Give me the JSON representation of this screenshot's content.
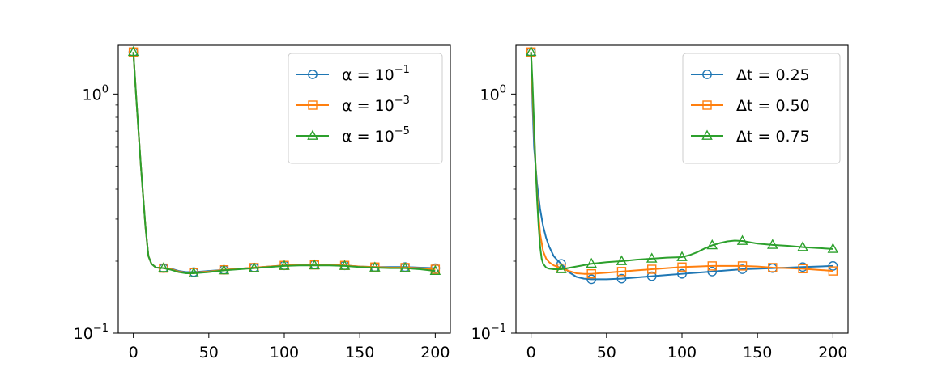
{
  "figure": {
    "background": "#ffffff"
  },
  "chart_data": [
    {
      "type": "line",
      "yscale": "log",
      "xlim": [
        -10,
        210
      ],
      "ylim": [
        0.1,
        1.6
      ],
      "xticks": [
        0,
        50,
        100,
        150,
        200
      ],
      "xtick_labels": [
        "0",
        "50",
        "100",
        "150",
        "200"
      ],
      "yticks": [
        0.1,
        1.0
      ],
      "ytick_labels": [
        {
          "base": "10",
          "exp": "−1"
        },
        {
          "base": "10",
          "exp": "0"
        }
      ],
      "legend_position": "top-right",
      "series": [
        {
          "name": "α = 10⁻¹",
          "legend": {
            "symbol": "α = 10",
            "exp": "−1"
          },
          "color": "#1f77b4",
          "marker": "circle",
          "x": [
            0,
            2,
            5,
            8,
            10,
            12,
            15,
            20,
            25,
            30,
            35,
            40,
            50,
            60,
            70,
            80,
            90,
            100,
            110,
            120,
            130,
            140,
            150,
            160,
            170,
            180,
            190,
            200
          ],
          "y": [
            1.5,
            0.95,
            0.5,
            0.28,
            0.21,
            0.195,
            0.188,
            0.187,
            0.186,
            0.182,
            0.18,
            0.18,
            0.182,
            0.184,
            0.186,
            0.188,
            0.19,
            0.192,
            0.193,
            0.194,
            0.193,
            0.192,
            0.19,
            0.189,
            0.189,
            0.189,
            0.188,
            0.187
          ],
          "marker_x": [
            0,
            20,
            40,
            60,
            80,
            100,
            120,
            140,
            160,
            180,
            200
          ]
        },
        {
          "name": "α = 10⁻³",
          "legend": {
            "symbol": "α = 10",
            "exp": "−3"
          },
          "color": "#ff7f0e",
          "marker": "square",
          "x": [
            0,
            2,
            5,
            8,
            10,
            12,
            15,
            20,
            25,
            30,
            35,
            40,
            50,
            60,
            70,
            80,
            90,
            100,
            110,
            120,
            130,
            140,
            150,
            160,
            170,
            180,
            190,
            200
          ],
          "y": [
            1.5,
            0.95,
            0.5,
            0.28,
            0.21,
            0.195,
            0.188,
            0.187,
            0.185,
            0.181,
            0.179,
            0.179,
            0.181,
            0.184,
            0.186,
            0.188,
            0.19,
            0.192,
            0.193,
            0.193,
            0.193,
            0.192,
            0.19,
            0.189,
            0.188,
            0.188,
            0.187,
            0.185
          ],
          "marker_x": [
            0,
            20,
            40,
            60,
            80,
            100,
            120,
            140,
            160,
            180,
            200
          ]
        },
        {
          "name": "α = 10⁻⁵",
          "legend": {
            "symbol": "α = 10",
            "exp": "−5"
          },
          "color": "#2ca02c",
          "marker": "triangle",
          "x": [
            0,
            2,
            5,
            8,
            10,
            12,
            15,
            20,
            25,
            30,
            35,
            40,
            50,
            60,
            70,
            80,
            90,
            100,
            110,
            120,
            130,
            140,
            150,
            160,
            170,
            180,
            190,
            200
          ],
          "y": [
            1.5,
            0.95,
            0.5,
            0.28,
            0.21,
            0.195,
            0.188,
            0.187,
            0.184,
            0.18,
            0.178,
            0.178,
            0.18,
            0.183,
            0.185,
            0.187,
            0.189,
            0.191,
            0.192,
            0.192,
            0.192,
            0.191,
            0.189,
            0.188,
            0.187,
            0.187,
            0.185,
            0.182
          ],
          "marker_x": [
            0,
            20,
            40,
            60,
            80,
            100,
            120,
            140,
            160,
            180,
            200
          ]
        }
      ]
    },
    {
      "type": "line",
      "yscale": "log",
      "xlim": [
        -10,
        210
      ],
      "ylim": [
        0.1,
        1.6
      ],
      "xticks": [
        0,
        50,
        100,
        150,
        200
      ],
      "xtick_labels": [
        "0",
        "50",
        "100",
        "150",
        "200"
      ],
      "yticks": [
        0.1,
        1.0
      ],
      "ytick_labels": [
        {
          "base": "10",
          "exp": "−1"
        },
        {
          "base": "10",
          "exp": "0"
        }
      ],
      "legend_position": "top-right",
      "series": [
        {
          "name": "Δt = 0.25",
          "legend": {
            "symbol": "Δt = 0.25",
            "exp": ""
          },
          "color": "#1f77b4",
          "marker": "circle",
          "x": [
            0,
            1,
            2,
            4,
            6,
            8,
            10,
            12,
            15,
            18,
            20,
            25,
            30,
            35,
            40,
            50,
            60,
            70,
            80,
            90,
            100,
            110,
            120,
            130,
            140,
            150,
            160,
            170,
            180,
            190,
            200
          ],
          "y": [
            1.5,
            0.9,
            0.6,
            0.42,
            0.33,
            0.28,
            0.25,
            0.23,
            0.21,
            0.2,
            0.195,
            0.18,
            0.172,
            0.169,
            0.168,
            0.168,
            0.169,
            0.171,
            0.173,
            0.175,
            0.177,
            0.179,
            0.181,
            0.183,
            0.185,
            0.186,
            0.187,
            0.188,
            0.189,
            0.19,
            0.191
          ],
          "marker_x": [
            0,
            20,
            40,
            60,
            80,
            100,
            120,
            140,
            160,
            180,
            200
          ]
        },
        {
          "name": "Δt = 0.50",
          "legend": {
            "symbol": "Δt = 0.50",
            "exp": ""
          },
          "color": "#ff7f0e",
          "marker": "square",
          "x": [
            0,
            1,
            2,
            3,
            4,
            5,
            6,
            8,
            10,
            12,
            15,
            20,
            25,
            30,
            35,
            40,
            50,
            60,
            70,
            80,
            90,
            100,
            110,
            120,
            130,
            140,
            150,
            160,
            170,
            180,
            190,
            200
          ],
          "y": [
            1.5,
            1.0,
            0.7,
            0.5,
            0.38,
            0.31,
            0.26,
            0.22,
            0.205,
            0.198,
            0.192,
            0.187,
            0.182,
            0.178,
            0.177,
            0.177,
            0.179,
            0.181,
            0.183,
            0.185,
            0.187,
            0.189,
            0.19,
            0.191,
            0.191,
            0.191,
            0.19,
            0.188,
            0.187,
            0.186,
            0.184,
            0.182
          ],
          "marker_x": [
            0,
            20,
            40,
            60,
            80,
            100,
            120,
            140,
            160,
            180,
            200
          ]
        },
        {
          "name": "Δt = 0.75",
          "legend": {
            "symbol": "Δt = 0.75",
            "exp": ""
          },
          "color": "#2ca02c",
          "marker": "triangle",
          "x": [
            0,
            1,
            2,
            3,
            4,
            5,
            6,
            7,
            8,
            10,
            12,
            15,
            20,
            30,
            40,
            50,
            60,
            70,
            80,
            90,
            100,
            105,
            110,
            115,
            120,
            125,
            130,
            135,
            140,
            145,
            150,
            160,
            170,
            180,
            190,
            200
          ],
          "y": [
            1.5,
            1.1,
            0.75,
            0.5,
            0.36,
            0.28,
            0.23,
            0.205,
            0.195,
            0.188,
            0.186,
            0.185,
            0.185,
            0.19,
            0.195,
            0.198,
            0.2,
            0.203,
            0.205,
            0.207,
            0.208,
            0.212,
            0.218,
            0.226,
            0.233,
            0.238,
            0.242,
            0.244,
            0.243,
            0.24,
            0.237,
            0.234,
            0.232,
            0.229,
            0.227,
            0.225
          ],
          "marker_x": [
            0,
            20,
            40,
            60,
            80,
            100,
            120,
            140,
            160,
            180,
            200
          ]
        }
      ]
    }
  ]
}
